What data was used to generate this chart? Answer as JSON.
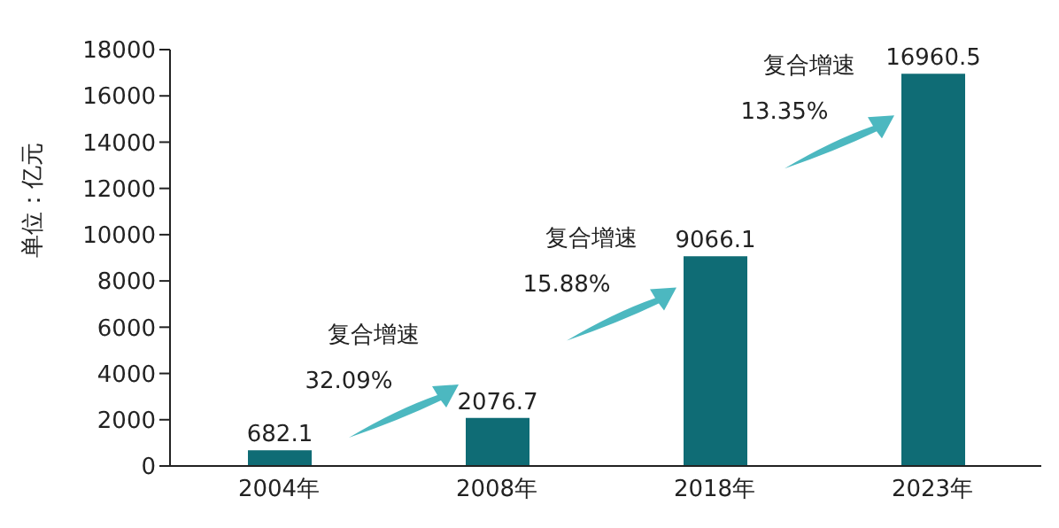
{
  "chart_data": {
    "type": "bar",
    "ylabel": "单位：亿元",
    "categories": [
      "2004年",
      "2008年",
      "2018年",
      "2023年"
    ],
    "values": [
      682.1,
      2076.7,
      9066.1,
      16960.5
    ],
    "color": "#0f6c75",
    "ylim": [
      0,
      18000
    ],
    "yticks": [
      0,
      2000,
      4000,
      6000,
      8000,
      10000,
      12000,
      14000,
      16000,
      18000
    ],
    "data_labels": true,
    "annotations": [
      "复合增速\n32.09%",
      "复合增速\n15.88%",
      "复合增速\n13.35%"
    ]
  }
}
